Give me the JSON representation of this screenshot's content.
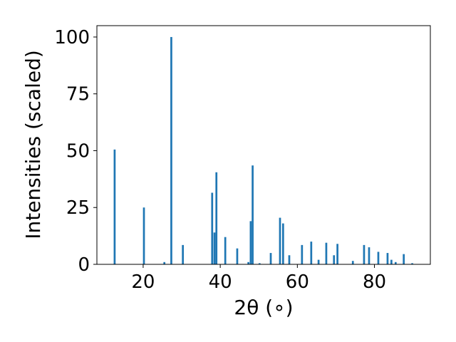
{
  "chart_data": {
    "type": "bar",
    "xlabel": "2θ (∘)",
    "ylabel": "Intensities (scaled)",
    "xlim": [
      8,
      94.5
    ],
    "ylim": [
      0,
      105
    ],
    "xticks": [
      20,
      40,
      60,
      80
    ],
    "yticks": [
      0,
      25,
      50,
      75,
      100
    ],
    "bar_color": "#1f77b4",
    "grid": false,
    "points": [
      {
        "x": 12.6,
        "y": 50.5
      },
      {
        "x": 20.2,
        "y": 25.0
      },
      {
        "x": 25.5,
        "y": 1.0
      },
      {
        "x": 27.3,
        "y": 100.0
      },
      {
        "x": 30.3,
        "y": 8.5
      },
      {
        "x": 37.9,
        "y": 31.5
      },
      {
        "x": 38.5,
        "y": 14.0
      },
      {
        "x": 39.0,
        "y": 40.5
      },
      {
        "x": 41.3,
        "y": 12.0
      },
      {
        "x": 44.4,
        "y": 7.0
      },
      {
        "x": 47.3,
        "y": 1.0
      },
      {
        "x": 47.9,
        "y": 19.0
      },
      {
        "x": 48.4,
        "y": 43.5
      },
      {
        "x": 50.2,
        "y": 0.5
      },
      {
        "x": 53.1,
        "y": 5.0
      },
      {
        "x": 55.5,
        "y": 20.5
      },
      {
        "x": 56.3,
        "y": 18.0
      },
      {
        "x": 57.9,
        "y": 4.0
      },
      {
        "x": 61.2,
        "y": 8.5
      },
      {
        "x": 63.6,
        "y": 10.0
      },
      {
        "x": 65.5,
        "y": 2.0
      },
      {
        "x": 67.5,
        "y": 9.5
      },
      {
        "x": 69.5,
        "y": 4.0
      },
      {
        "x": 70.4,
        "y": 9.0
      },
      {
        "x": 74.4,
        "y": 1.5
      },
      {
        "x": 77.3,
        "y": 8.5
      },
      {
        "x": 78.6,
        "y": 7.5
      },
      {
        "x": 81.0,
        "y": 5.5
      },
      {
        "x": 83.4,
        "y": 5.0
      },
      {
        "x": 84.4,
        "y": 2.0
      },
      {
        "x": 85.5,
        "y": 1.0
      },
      {
        "x": 87.6,
        "y": 4.5
      },
      {
        "x": 89.8,
        "y": 0.5
      }
    ]
  }
}
